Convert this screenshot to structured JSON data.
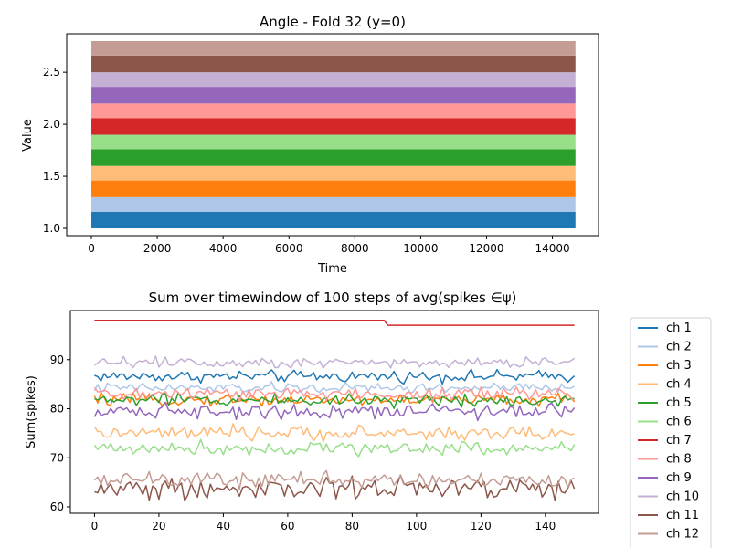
{
  "chart_data": [
    {
      "type": "area",
      "title": "Angle - Fold 32 (y=0)",
      "xlabel": "Time",
      "ylabel": "Value",
      "xlim": [
        -750,
        15400
      ],
      "ylim": [
        0.93,
        2.87
      ],
      "xticks": [
        0,
        2000,
        4000,
        6000,
        8000,
        10000,
        12000,
        14000
      ],
      "yticks": [
        1.0,
        1.5,
        2.0,
        2.5
      ],
      "ytick_labels": [
        "1.0",
        "1.5",
        "2.0",
        "2.5"
      ],
      "x_range": [
        0,
        14700
      ],
      "bands": [
        {
          "low": 1.0,
          "high": 1.16,
          "color": "#1f77b4"
        },
        {
          "low": 1.16,
          "high": 1.3,
          "color": "#aec7e8"
        },
        {
          "low": 1.3,
          "high": 1.46,
          "color": "#ff7f0e"
        },
        {
          "low": 1.46,
          "high": 1.6,
          "color": "#ffbb78"
        },
        {
          "low": 1.6,
          "high": 1.76,
          "color": "#2ca02c"
        },
        {
          "low": 1.76,
          "high": 1.9,
          "color": "#98df8a"
        },
        {
          "low": 1.9,
          "high": 2.06,
          "color": "#d62728"
        },
        {
          "low": 2.06,
          "high": 2.2,
          "color": "#ff9896"
        },
        {
          "low": 2.2,
          "high": 2.36,
          "color": "#9467bd"
        },
        {
          "low": 2.36,
          "high": 2.5,
          "color": "#c5b0d5"
        },
        {
          "low": 2.5,
          "high": 2.66,
          "color": "#8c564b"
        },
        {
          "low": 2.66,
          "high": 2.8,
          "color": "#c49c94"
        }
      ],
      "grid": false
    },
    {
      "type": "line",
      "title": "Sum over timewindow of 100 steps of avg(spikes ∈ψ)",
      "xlabel": "",
      "ylabel": "Sum(spikes)",
      "xlim": [
        -7.5,
        156.5
      ],
      "ylim": [
        58.7,
        100.0
      ],
      "xticks": [
        0,
        20,
        40,
        60,
        80,
        100,
        120,
        140
      ],
      "yticks": [
        60,
        70,
        80,
        90
      ],
      "x_range": [
        0,
        149
      ],
      "legend_position": "outside-right",
      "grid": false,
      "series": [
        {
          "name": "ch 1",
          "color": "#1f77b4",
          "mean": 86.6,
          "amp": 0.9
        },
        {
          "name": "ch 2",
          "color": "#aec7e8",
          "mean": 84.2,
          "amp": 0.8
        },
        {
          "name": "ch 3",
          "color": "#ff7f0e",
          "mean": 81.8,
          "amp": 0.9
        },
        {
          "name": "ch 4",
          "color": "#ffbb78",
          "mean": 75.0,
          "amp": 1.1
        },
        {
          "name": "ch 5",
          "color": "#2ca02c",
          "mean": 81.8,
          "amp": 1.0
        },
        {
          "name": "ch 6",
          "color": "#98df8a",
          "mean": 72.0,
          "amp": 1.1
        },
        {
          "name": "ch 7",
          "color": "#d62728",
          "steps": [
            [
              0,
              98
            ],
            [
              90,
              98
            ],
            [
              91,
              97
            ],
            [
              149,
              97
            ]
          ]
        },
        {
          "name": "ch 8",
          "color": "#ff9896",
          "mean": 83.0,
          "amp": 1.1
        },
        {
          "name": "ch 9",
          "color": "#9467bd",
          "mean": 79.6,
          "amp": 1.2
        },
        {
          "name": "ch 10",
          "color": "#c5b0d5",
          "mean": 89.5,
          "amp": 0.9
        },
        {
          "name": "ch 11",
          "color": "#8c564b",
          "mean": 63.8,
          "amp": 1.8
        },
        {
          "name": "ch 12",
          "color": "#c49c94",
          "mean": 65.5,
          "amp": 1.2
        }
      ]
    }
  ]
}
